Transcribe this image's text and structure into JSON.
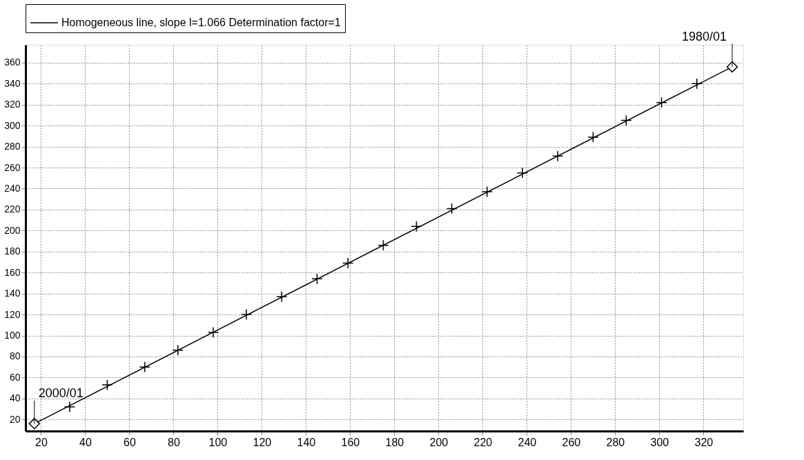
{
  "chart_data": {
    "type": "scatter",
    "xlim": [
      13,
      338
    ],
    "ylim": [
      9,
      377
    ],
    "xticks": [
      20,
      40,
      60,
      80,
      100,
      120,
      140,
      160,
      180,
      200,
      220,
      240,
      260,
      280,
      300,
      320
    ],
    "yticks": [
      20,
      40,
      60,
      80,
      100,
      120,
      140,
      160,
      180,
      200,
      220,
      240,
      260,
      280,
      300,
      320,
      340,
      360
    ],
    "grid": true,
    "legend": "top",
    "series": [
      {
        "name": "Homogeneous line, slope l=1.066 Determination factor=1",
        "type": "line",
        "color": "#000000",
        "line_style": "solid",
        "marker": "none",
        "x": [
          17,
          333
        ],
        "values": [
          16,
          356
        ]
      },
      {
        "type": "scatter",
        "color": "#000000",
        "marker": "cross",
        "x": [
          33,
          50,
          67,
          82,
          98,
          113,
          129,
          145,
          159,
          175,
          190,
          206,
          222,
          238,
          254,
          270,
          285,
          301,
          317
        ],
        "values": [
          32,
          53,
          70,
          86,
          103,
          120,
          137,
          154,
          169,
          186,
          204,
          221,
          237,
          255,
          271,
          289,
          305,
          322,
          340
        ]
      },
      {
        "type": "scatter",
        "color": "#000000",
        "marker": "diamond",
        "x": [
          17,
          333
        ],
        "values": [
          16,
          356
        ]
      }
    ],
    "annotations": [
      {
        "text": "2000/01",
        "x": 17,
        "y": 16
      },
      {
        "text": "1980/01",
        "x": 333,
        "y": 356
      }
    ]
  }
}
